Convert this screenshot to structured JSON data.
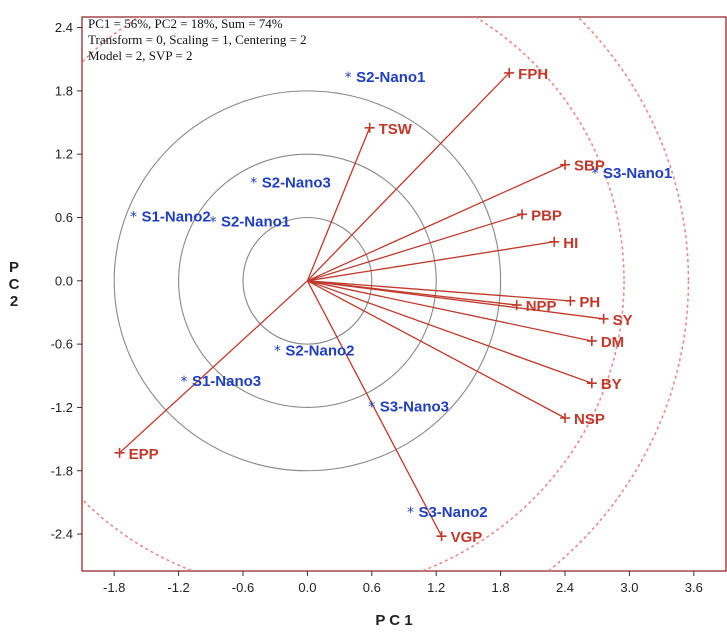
{
  "chart_data": {
    "type": "scatter",
    "subtype": "pca-biplot",
    "info_lines": [
      "PC1 = 56%, PC2 = 18%, Sum = 74%",
      "Transform = 0, Scaling = 1, Centering = 2",
      "Model = 2, SVP = 2"
    ],
    "xlabel": "P C 1",
    "ylabel": "P C 2",
    "xlim": [
      -2.1,
      3.9
    ],
    "ylim": [
      -2.75,
      2.5
    ],
    "x_ticks": [
      -1.8,
      -1.2,
      -0.6,
      0.0,
      0.6,
      1.2,
      1.8,
      2.4,
      3.0,
      3.6
    ],
    "y_ticks": [
      2.4,
      1.8,
      1.2,
      0.6,
      0.0,
      -0.6,
      -1.2,
      -1.8,
      -2.4
    ],
    "circles_solid_radii": [
      0.6,
      1.2,
      1.8
    ],
    "circles_dashed_radii": [
      2.95,
      3.55
    ],
    "variables": [
      {
        "label": "FPH",
        "x": 1.88,
        "y": 1.97
      },
      {
        "label": "TSW",
        "x": 0.58,
        "y": 1.45
      },
      {
        "label": "SBP",
        "x": 2.4,
        "y": 1.1
      },
      {
        "label": "PBP",
        "x": 2.0,
        "y": 0.63
      },
      {
        "label": "HI",
        "x": 2.3,
        "y": 0.37
      },
      {
        "label": "NPP",
        "x": 1.95,
        "y": -0.23
      },
      {
        "label": "PH",
        "x": 2.45,
        "y": -0.19
      },
      {
        "label": "SY",
        "x": 2.76,
        "y": -0.36
      },
      {
        "label": "DM",
        "x": 2.65,
        "y": -0.57
      },
      {
        "label": "BY",
        "x": 2.65,
        "y": -0.97
      },
      {
        "label": "NSP",
        "x": 2.4,
        "y": -1.3
      },
      {
        "label": "VGP",
        "x": 1.25,
        "y": -2.42
      },
      {
        "label": "EPP",
        "x": -1.75,
        "y": -1.63
      }
    ],
    "observations": [
      {
        "label": "S2-Nano1",
        "x": 0.38,
        "y": 1.94
      },
      {
        "label": "S2-Nano3",
        "x": -0.5,
        "y": 0.94
      },
      {
        "label": "S3-Nano1",
        "x": 2.68,
        "y": 1.03
      },
      {
        "label": "S1-Nano2",
        "x": -1.62,
        "y": 0.62
      },
      {
        "label": "S2-Nano1",
        "x": -0.88,
        "y": 0.57
      },
      {
        "label": "S2-Nano2",
        "x": -0.28,
        "y": -0.65
      },
      {
        "label": "S1-Nano3",
        "x": -1.15,
        "y": -0.94
      },
      {
        "label": "S3-Nano3",
        "x": 0.6,
        "y": -1.18
      },
      {
        "label": "S3-Nano2",
        "x": 0.96,
        "y": -2.18
      }
    ],
    "colors": {
      "variable": "#c0392b",
      "observation": "#1f3fbf",
      "solid_circle": "#888888",
      "dashed_circle": "#e88a8a",
      "frame": "#8b1a1a"
    }
  }
}
